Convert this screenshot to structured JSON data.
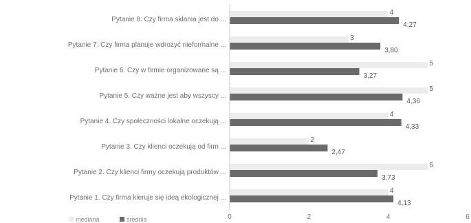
{
  "chart_data": {
    "type": "bar",
    "orientation": "horizontal",
    "categories": [
      "Pytanie 8. Czy firma skłania jest do ...",
      "Pytanie 7. Czy firma planuje wdrożyć nieformalne ...",
      "Pytanie 6. Czy w firmie organizowane są ...",
      "Pytanie 5. Czy ważne jest aby wszyscy ...",
      "Pytanie 4. Czy społeczności lokalne oczekują ...",
      "Pytanie 3. Czy klienci oczekują od firm ...",
      "Pytanie 2. Czy klienci firmy oczekują produktów ...",
      "Pytanie 1. Czy firma kieruje się ideą ekologicznej ..."
    ],
    "series": [
      {
        "name": "mediana",
        "color": "#ececec",
        "values": [
          4,
          3,
          5,
          5,
          4,
          2,
          5,
          4
        ],
        "labels": [
          "4",
          "3",
          "5",
          "5",
          "4",
          "2",
          "5",
          "4"
        ]
      },
      {
        "name": "średnia",
        "color": "#6a6a6a",
        "values": [
          4.27,
          3.8,
          3.27,
          4.36,
          4.33,
          2.47,
          3.73,
          4.13
        ],
        "labels": [
          "4,27",
          "3,80",
          "3,27",
          "4,36",
          "4,33",
          "2,47",
          "3,73",
          "4,13"
        ]
      }
    ],
    "xlim": [
      0,
      6
    ],
    "xticks": [
      "0",
      "2",
      "4",
      "6"
    ],
    "grid": false,
    "legend_position": "bottom-left"
  }
}
